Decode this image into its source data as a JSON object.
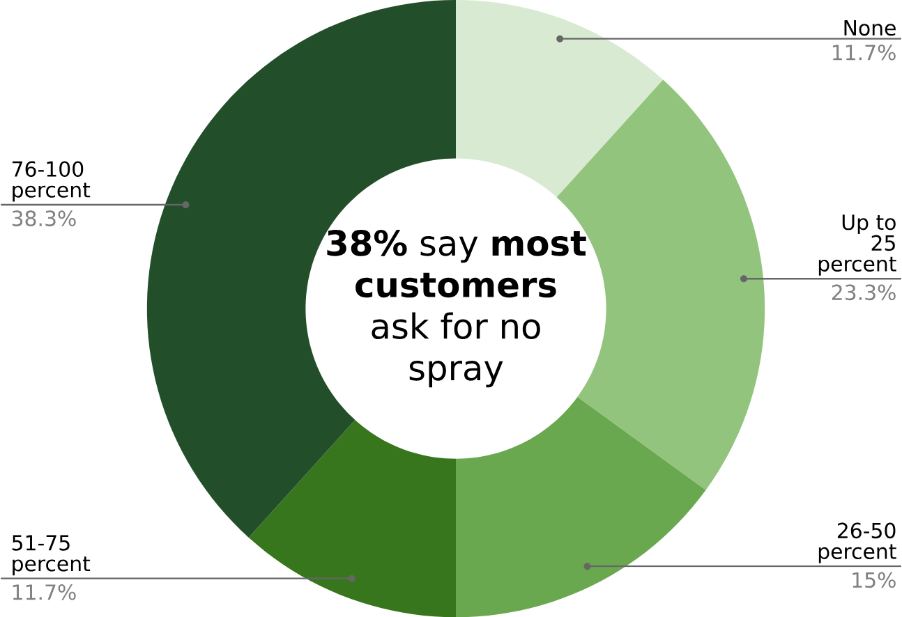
{
  "chart_data": {
    "type": "donut",
    "categories": [
      "None",
      "Up to 25 percent",
      "26-50 percent",
      "51-75 percent",
      "76-100 percent"
    ],
    "values": [
      11.7,
      23.3,
      15,
      11.7,
      38.3
    ],
    "colors": [
      "#d9ead3",
      "#93c47d",
      "#6aa84f",
      "#38761d",
      "#224f29"
    ],
    "value_labels": [
      "11.7%",
      "23.3%",
      "15%",
      "11.7%",
      "38.3%"
    ],
    "annotations": [
      "**38%** say **most customers** ask for no spray"
    ]
  }
}
